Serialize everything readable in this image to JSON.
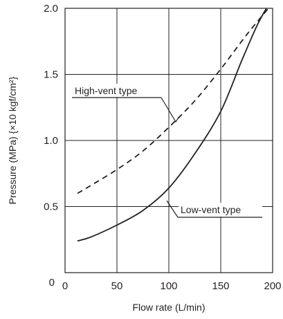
{
  "chart_data": {
    "type": "line",
    "title": "",
    "xlabel": "Flow rate (L/min)",
    "ylabel": "Pressure (MPa) {×10 kgf/cm²}",
    "xlim": [
      0,
      200
    ],
    "ylim": [
      0,
      2.0
    ],
    "x_ticks": [
      "0",
      "50",
      "100",
      "150",
      "200"
    ],
    "y_ticks": [
      "0",
      "0.5",
      "1.0",
      "1.5",
      "2.0"
    ],
    "grid": true,
    "legend": "none",
    "series": [
      {
        "name": "High-vent type",
        "line_style": "dashed",
        "points": [
          [
            12,
            0.6
          ],
          [
            25,
            0.66
          ],
          [
            50,
            0.78
          ],
          [
            75,
            0.92
          ],
          [
            100,
            1.1
          ],
          [
            125,
            1.3
          ],
          [
            150,
            1.54
          ],
          [
            175,
            1.8
          ],
          [
            196,
            2.0
          ]
        ]
      },
      {
        "name": "Low-vent type",
        "line_style": "solid",
        "points": [
          [
            12,
            0.24
          ],
          [
            25,
            0.27
          ],
          [
            50,
            0.36
          ],
          [
            75,
            0.47
          ],
          [
            100,
            0.64
          ],
          [
            125,
            0.9
          ],
          [
            150,
            1.22
          ],
          [
            170,
            1.6
          ],
          [
            185,
            1.87
          ],
          [
            194,
            2.0
          ]
        ]
      }
    ],
    "annotations": [
      {
        "text": "High-vent type",
        "series": 0
      },
      {
        "text": "Low-vent type",
        "series": 1
      }
    ]
  }
}
